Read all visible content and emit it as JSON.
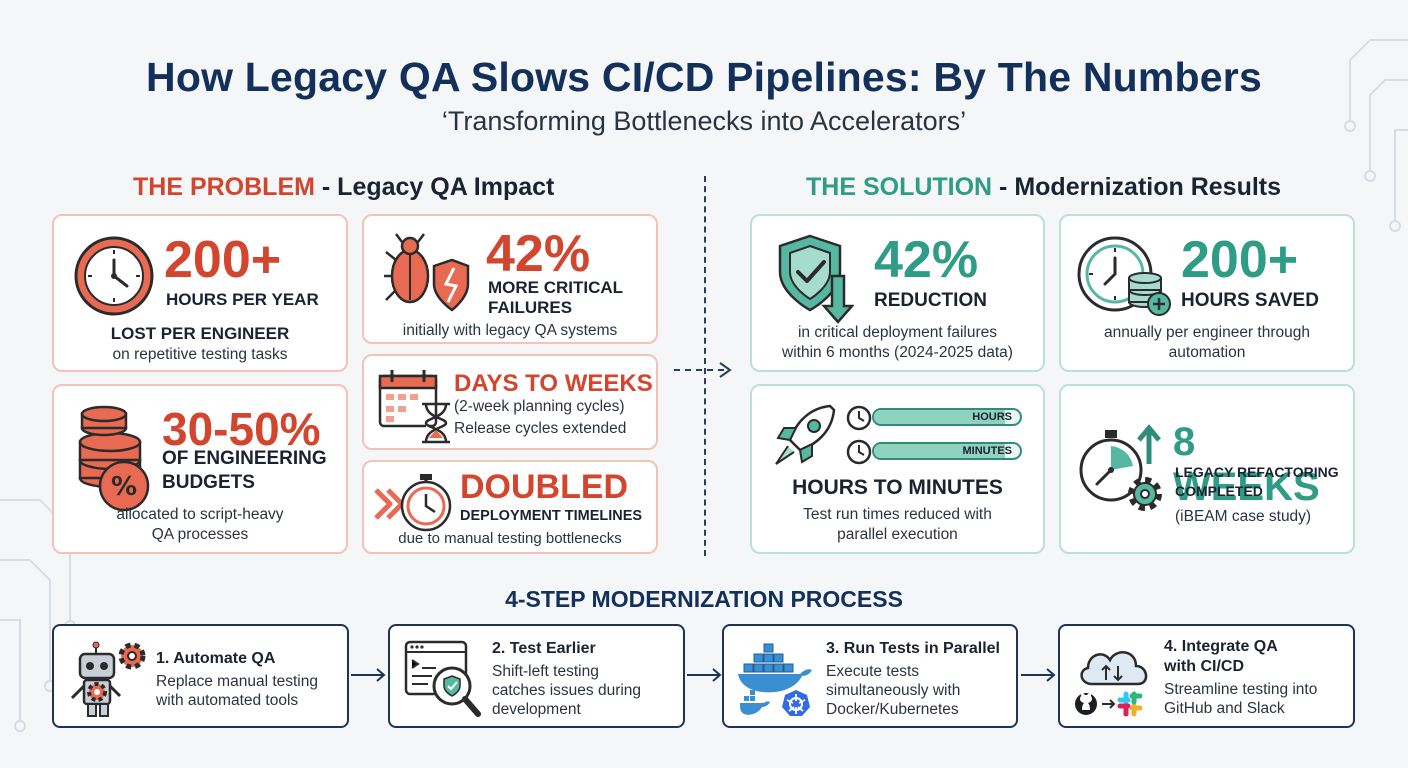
{
  "title": "How Legacy QA Slows CI/CD Pipelines: By The Numbers",
  "subtitle": "‘Transforming Bottlenecks into Accelerators’",
  "problem": {
    "heading_highlight": "THE PROBLEM",
    "heading_rest": " - Legacy QA Impact",
    "cards": {
      "hours": {
        "value": "200+",
        "unit": "HOURS PER YEAR",
        "caption": "LOST PER ENGINEER",
        "desc": "on repetitive testing tasks",
        "icon": "clock-icon"
      },
      "failures": {
        "value": "42%",
        "unit_line1": "MORE CRITICAL",
        "unit_line2": "FAILURES",
        "desc": "initially with legacy QA systems",
        "icon": "bug-icon"
      },
      "days": {
        "value": "DAYS TO WEEKS",
        "sub": "(2-week planning cycles)",
        "desc": "Release cycles extended",
        "icon": "calendar-hourglass-icon"
      },
      "budgets": {
        "value": "30-50%",
        "unit_line1": "OF ENGINEERING",
        "unit_line2": "BUDGETS",
        "desc_line1": "allocated to script-heavy",
        "desc_line2": "QA processes",
        "icon": "coins-percent-icon"
      },
      "doubled": {
        "value": "DOUBLED",
        "unit": "DEPLOYMENT TIMELINES",
        "desc": "due to manual testing bottlenecks",
        "icon": "stopwatch-rewind-icon"
      }
    }
  },
  "solution": {
    "heading_highlight": "THE SOLUTION",
    "heading_rest": " - Modernization Results",
    "cards": {
      "reduction": {
        "value": "42%",
        "unit": "REDUCTION",
        "desc_line1": "in critical deployment failures",
        "desc_line2": "within 6 months (2024-2025 data)",
        "icon": "shield-check-icon"
      },
      "saved": {
        "value": "200+",
        "unit": "HOURS SAVED",
        "desc_line1": "annually per engineer through",
        "desc_line2": "automation",
        "icon": "clock-coins-icon"
      },
      "minutes": {
        "caption": "HOURS TO MINUTES",
        "bar1_label": "HOURS",
        "bar2_label": "MINUTES",
        "bar1_level": 0.9,
        "bar2_level": 0.9,
        "desc_line1": "Test run times reduced with",
        "desc_line2": "parallel execution",
        "icon": "rocket-icon"
      },
      "weeks": {
        "value": "8 WEEKS",
        "unit_line1": "LEGACY REFACTORING",
        "unit_line2": "COMPLETED",
        "desc": "(iBEAM case study)",
        "icon": "stopwatch-gear-icon"
      }
    }
  },
  "process": {
    "heading": "4-STEP MODERNIZATION PROCESS",
    "steps": [
      {
        "title": "1. Automate QA",
        "desc_lines": [
          "Replace manual testing",
          "with automated tools"
        ],
        "icon": "robot-icon"
      },
      {
        "title": "2. Test Earlier",
        "desc_lines": [
          "Shift-left testing",
          "catches issues during",
          "development"
        ],
        "icon": "browser-search-icon"
      },
      {
        "title": "3. Run Tests in Parallel",
        "desc_lines": [
          "Execute tests",
          "simultaneously with",
          "Docker/Kubernetes"
        ],
        "icon": "docker-kubernetes-icon"
      },
      {
        "title_lines": [
          "4. Integrate QA",
          "with CI/CD"
        ],
        "desc_lines": [
          "Streamline testing into",
          "GitHub and Slack"
        ],
        "icon": "cloud-github-slack-icon"
      }
    ]
  },
  "colors": {
    "problem": "#d2452f",
    "solution": "#2f9c86",
    "navy": "#12305a"
  }
}
